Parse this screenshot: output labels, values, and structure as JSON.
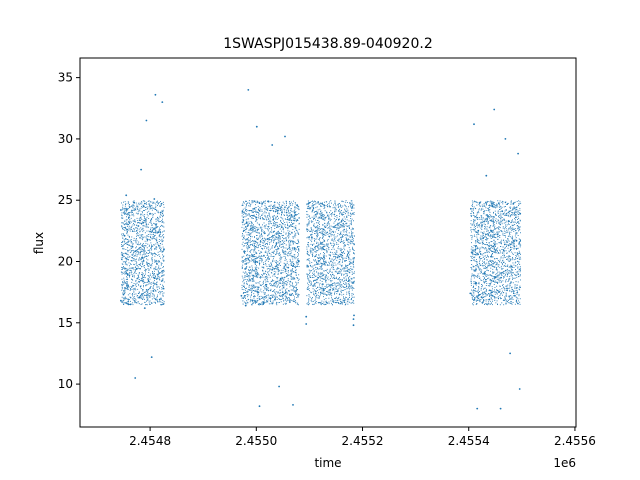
{
  "chart_data": {
    "type": "scatter",
    "title": "1SWASPJ015438.89-040920.2",
    "xlabel": "time",
    "ylabel": "flux",
    "x_offset_label": "1e6",
    "xlim": [
      2454668,
      2455602
    ],
    "ylim": [
      6.5,
      36.6
    ],
    "x_ticks": [
      {
        "value": 2454800,
        "label": "2.4548"
      },
      {
        "value": 2455000,
        "label": "2.4550"
      },
      {
        "value": 2455200,
        "label": "2.4552"
      },
      {
        "value": 2455400,
        "label": "2.4554"
      },
      {
        "value": 2455600,
        "label": "2.4556"
      }
    ],
    "y_ticks": [
      {
        "value": 10,
        "label": "10"
      },
      {
        "value": 15,
        "label": "15"
      },
      {
        "value": 20,
        "label": "20"
      },
      {
        "value": 25,
        "label": "25"
      },
      {
        "value": 30,
        "label": "30"
      },
      {
        "value": 35,
        "label": "35"
      }
    ],
    "grid": false,
    "marker_color": "#1f77b4",
    "series": [
      {
        "values": [
          {
            "x": 2454745,
            "y": 16.8
          },
          {
            "x": 2454745,
            "y": 24.2
          },
          {
            "x": 2454748,
            "y": 20.5
          },
          {
            "x": 2454750,
            "y": 17.3
          },
          {
            "x": 2454752,
            "y": 22.1
          },
          {
            "x": 2454755,
            "y": 25.4
          },
          {
            "x": 2454758,
            "y": 18.9
          },
          {
            "x": 2454760,
            "y": 23.6
          },
          {
            "x": 2454763,
            "y": 16.5
          },
          {
            "x": 2454767,
            "y": 21.2
          },
          {
            "x": 2454770,
            "y": 24.8
          },
          {
            "x": 2454772,
            "y": 10.5
          },
          {
            "x": 2454775,
            "y": 19.4
          },
          {
            "x": 2454778,
            "y": 22.9
          },
          {
            "x": 2454780,
            "y": 17.1
          },
          {
            "x": 2454783,
            "y": 27.5
          },
          {
            "x": 2454786,
            "y": 20.3
          },
          {
            "x": 2454788,
            "y": 24.5
          },
          {
            "x": 2454790,
            "y": 16.2
          },
          {
            "x": 2454793,
            "y": 31.5
          },
          {
            "x": 2454795,
            "y": 21.8
          },
          {
            "x": 2454797,
            "y": 18.4
          },
          {
            "x": 2454800,
            "y": 23.9
          },
          {
            "x": 2454803,
            "y": 12.2
          },
          {
            "x": 2454806,
            "y": 17.6
          },
          {
            "x": 2454808,
            "y": 25.1
          },
          {
            "x": 2454810,
            "y": 33.6
          },
          {
            "x": 2454813,
            "y": 19.8
          },
          {
            "x": 2454816,
            "y": 22.4
          },
          {
            "x": 2454818,
            "y": 16.9
          },
          {
            "x": 2454820,
            "y": 24.0
          },
          {
            "x": 2454823,
            "y": 33.0
          },
          {
            "x": 2454825,
            "y": 17.8
          },
          {
            "x": 2454826,
            "y": 21.0
          }
        ]
      },
      {
        "values": [
          {
            "x": 2454972,
            "y": 17.2
          },
          {
            "x": 2454974,
            "y": 24.1
          },
          {
            "x": 2454977,
            "y": 20.8
          },
          {
            "x": 2454980,
            "y": 16.4
          },
          {
            "x": 2454982,
            "y": 23.2
          },
          {
            "x": 2454985,
            "y": 34.0
          },
          {
            "x": 2454988,
            "y": 18.5
          },
          {
            "x": 2454990,
            "y": 22.7
          },
          {
            "x": 2454993,
            "y": 16.8
          },
          {
            "x": 2454996,
            "y": 24.3
          },
          {
            "x": 2454998,
            "y": 19.9
          },
          {
            "x": 2455001,
            "y": 31.0
          },
          {
            "x": 2455003,
            "y": 17.5
          },
          {
            "x": 2455006,
            "y": 8.2
          },
          {
            "x": 2455008,
            "y": 21.6
          },
          {
            "x": 2455011,
            "y": 24.7
          },
          {
            "x": 2455014,
            "y": 16.6
          },
          {
            "x": 2455016,
            "y": 22.3
          },
          {
            "x": 2455019,
            "y": 18.1
          },
          {
            "x": 2455022,
            "y": 24.9
          },
          {
            "x": 2455024,
            "y": 20.2
          },
          {
            "x": 2455027,
            "y": 17.0
          },
          {
            "x": 2455030,
            "y": 29.5
          },
          {
            "x": 2455032,
            "y": 23.4
          },
          {
            "x": 2455035,
            "y": 16.9
          },
          {
            "x": 2455038,
            "y": 21.5
          },
          {
            "x": 2455040,
            "y": 24.4
          },
          {
            "x": 2455043,
            "y": 9.8
          },
          {
            "x": 2455046,
            "y": 18.6
          },
          {
            "x": 2455048,
            "y": 22.8
          },
          {
            "x": 2455051,
            "y": 17.3
          },
          {
            "x": 2455054,
            "y": 30.2
          },
          {
            "x": 2455057,
            "y": 24.0
          },
          {
            "x": 2455060,
            "y": 19.5
          },
          {
            "x": 2455063,
            "y": 16.7
          },
          {
            "x": 2455066,
            "y": 23.8
          },
          {
            "x": 2455069,
            "y": 8.3
          },
          {
            "x": 2455072,
            "y": 21.1
          },
          {
            "x": 2455075,
            "y": 17.6
          },
          {
            "x": 2455077,
            "y": 24.6
          },
          {
            "x": 2455080,
            "y": 20.0
          }
        ]
      },
      {
        "values": [
          {
            "x": 2455094,
            "y": 15.5
          },
          {
            "x": 2455094,
            "y": 14.9
          },
          {
            "x": 2455183,
            "y": 15.3
          },
          {
            "x": 2455183,
            "y": 14.8
          },
          {
            "x": 2455184,
            "y": 15.6
          }
        ]
      },
      {
        "values": [
          {
            "x": 2455403,
            "y": 17.4
          },
          {
            "x": 2455404,
            "y": 24.3
          },
          {
            "x": 2455407,
            "y": 20.7
          },
          {
            "x": 2455410,
            "y": 31.2
          },
          {
            "x": 2455413,
            "y": 18.2
          },
          {
            "x": 2455416,
            "y": 8.0
          },
          {
            "x": 2455418,
            "y": 22.5
          },
          {
            "x": 2455421,
            "y": 24.8
          },
          {
            "x": 2455424,
            "y": 17.1
          },
          {
            "x": 2455427,
            "y": 21.9
          },
          {
            "x": 2455430,
            "y": 19.0
          },
          {
            "x": 2455433,
            "y": 27.0
          },
          {
            "x": 2455436,
            "y": 23.7
          },
          {
            "x": 2455439,
            "y": 16.9
          },
          {
            "x": 2455442,
            "y": 20.4
          },
          {
            "x": 2455445,
            "y": 24.5
          },
          {
            "x": 2455448,
            "y": 32.4
          },
          {
            "x": 2455451,
            "y": 18.7
          },
          {
            "x": 2455454,
            "y": 22.2
          },
          {
            "x": 2455457,
            "y": 17.5
          },
          {
            "x": 2455460,
            "y": 8.0
          },
          {
            "x": 2455463,
            "y": 24.1
          },
          {
            "x": 2455466,
            "y": 20.9
          },
          {
            "x": 2455469,
            "y": 30.0
          },
          {
            "x": 2455472,
            "y": 17.8
          },
          {
            "x": 2455475,
            "y": 23.3
          },
          {
            "x": 2455478,
            "y": 12.5
          },
          {
            "x": 2455481,
            "y": 19.6
          },
          {
            "x": 2455484,
            "y": 24.7
          },
          {
            "x": 2455487,
            "y": 17.2
          },
          {
            "x": 2455490,
            "y": 21.7
          },
          {
            "x": 2455493,
            "y": 28.8
          },
          {
            "x": 2455496,
            "y": 9.6
          },
          {
            "x": 2455497,
            "y": 23.9
          }
        ]
      }
    ]
  }
}
